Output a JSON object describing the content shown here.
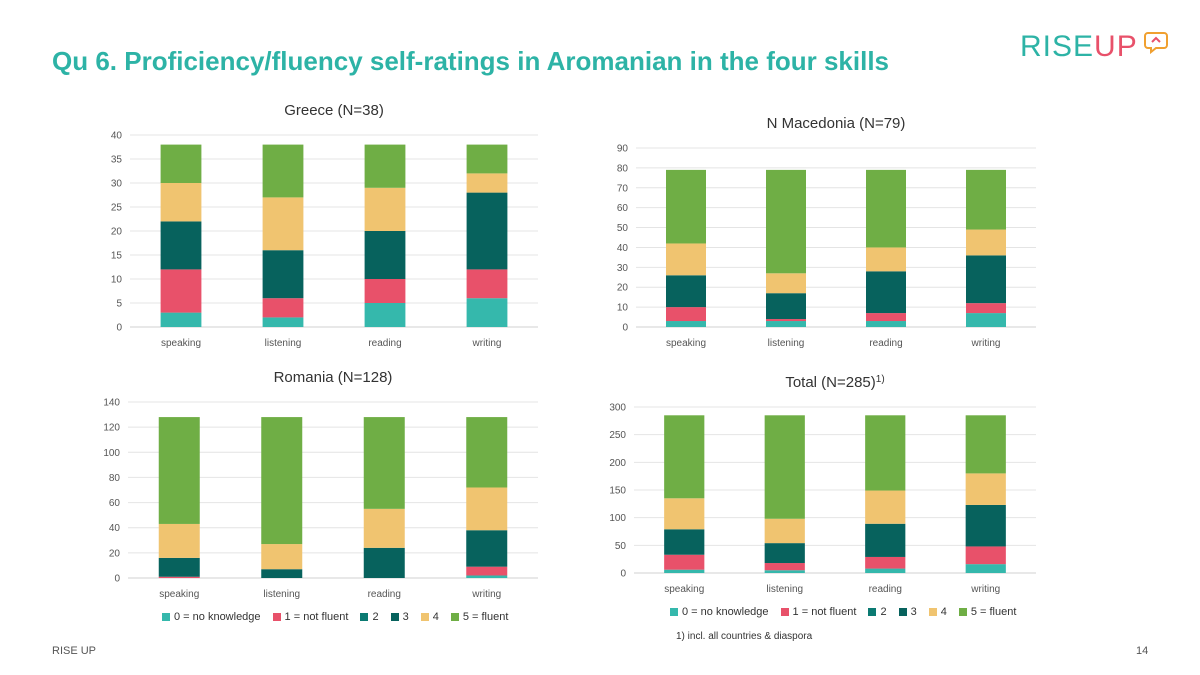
{
  "slide": {
    "title": "Qu 6. Proficiency/fluency self-ratings in Aromanian in the four skills",
    "logo_rise": "RISE",
    "logo_up": "UP",
    "footer_left": "RISE UP",
    "page_number": "14",
    "note": "1) incl. all countries & diaspora"
  },
  "legend": [
    {
      "label": "0 = no knowledge",
      "color": "#35b8ac"
    },
    {
      "label": "1 = not fluent",
      "color": "#e8516a"
    },
    {
      "label": "2",
      "color": "#0b7a72"
    },
    {
      "label": "3",
      "color": "#07625d"
    },
    {
      "label": "4",
      "color": "#f0c470"
    },
    {
      "label": "5 = fluent",
      "color": "#6fae45"
    }
  ],
  "chart_data": [
    {
      "type": "bar",
      "stacked": true,
      "title": "Greece (N=38)",
      "categories": [
        "speaking",
        "listening",
        "reading",
        "writing"
      ],
      "ylim": [
        0,
        40
      ],
      "yticks": [
        0,
        5,
        10,
        15,
        20,
        25,
        30,
        35,
        40
      ],
      "grid": true,
      "series": [
        {
          "name": "0 = no knowledge",
          "values": [
            3,
            2,
            5,
            6
          ]
        },
        {
          "name": "1 = not fluent",
          "values": [
            9,
            4,
            5,
            6
          ]
        },
        {
          "name": "2",
          "values": [
            0,
            0,
            0,
            0
          ]
        },
        {
          "name": "3",
          "values": [
            10,
            10,
            10,
            16
          ]
        },
        {
          "name": "4",
          "values": [
            8,
            11,
            9,
            4
          ]
        },
        {
          "name": "5 = fluent",
          "values": [
            8,
            11,
            9,
            6
          ]
        }
      ]
    },
    {
      "type": "bar",
      "stacked": true,
      "title": "N Macedonia (N=79)",
      "categories": [
        "speaking",
        "listening",
        "reading",
        "writing"
      ],
      "ylim": [
        0,
        90
      ],
      "yticks": [
        0,
        10,
        20,
        30,
        40,
        50,
        60,
        70,
        80,
        90
      ],
      "grid": true,
      "series": [
        {
          "name": "0 = no knowledge",
          "values": [
            3,
            3,
            3,
            7
          ]
        },
        {
          "name": "1 = not fluent",
          "values": [
            7,
            1,
            4,
            5
          ]
        },
        {
          "name": "2",
          "values": [
            0,
            0,
            0,
            0
          ]
        },
        {
          "name": "3",
          "values": [
            16,
            13,
            21,
            24
          ]
        },
        {
          "name": "4",
          "values": [
            16,
            10,
            12,
            13
          ]
        },
        {
          "name": "5 = fluent",
          "values": [
            37,
            52,
            39,
            30
          ]
        }
      ]
    },
    {
      "type": "bar",
      "stacked": true,
      "title": "Romania (N=128)",
      "categories": [
        "speaking",
        "listening",
        "reading",
        "writing"
      ],
      "ylim": [
        0,
        140
      ],
      "yticks": [
        0,
        20,
        40,
        60,
        80,
        100,
        120,
        140
      ],
      "grid": true,
      "series": [
        {
          "name": "0 = no knowledge",
          "values": [
            0,
            0,
            0,
            2
          ]
        },
        {
          "name": "1 = not fluent",
          "values": [
            1,
            0,
            0,
            7
          ]
        },
        {
          "name": "2",
          "values": [
            0,
            0,
            0,
            0
          ]
        },
        {
          "name": "3",
          "values": [
            15,
            7,
            24,
            29
          ]
        },
        {
          "name": "4",
          "values": [
            27,
            20,
            31,
            34
          ]
        },
        {
          "name": "5 = fluent",
          "values": [
            85,
            101,
            73,
            56
          ]
        }
      ]
    },
    {
      "type": "bar",
      "stacked": true,
      "title": "Total (N=285)",
      "title_sup": "1)",
      "categories": [
        "speaking",
        "listening",
        "reading",
        "writing"
      ],
      "ylim": [
        0,
        300
      ],
      "yticks": [
        0,
        50,
        100,
        150,
        200,
        250,
        300
      ],
      "grid": true,
      "series": [
        {
          "name": "0 = no knowledge",
          "values": [
            6,
            5,
            8,
            16
          ]
        },
        {
          "name": "1 = not fluent",
          "values": [
            27,
            13,
            21,
            32
          ]
        },
        {
          "name": "2",
          "values": [
            0,
            0,
            0,
            0
          ]
        },
        {
          "name": "3",
          "values": [
            46,
            36,
            60,
            75
          ]
        },
        {
          "name": "4",
          "values": [
            56,
            44,
            60,
            57
          ]
        },
        {
          "name": "5 = fluent",
          "values": [
            150,
            187,
            136,
            105
          ]
        }
      ]
    }
  ]
}
